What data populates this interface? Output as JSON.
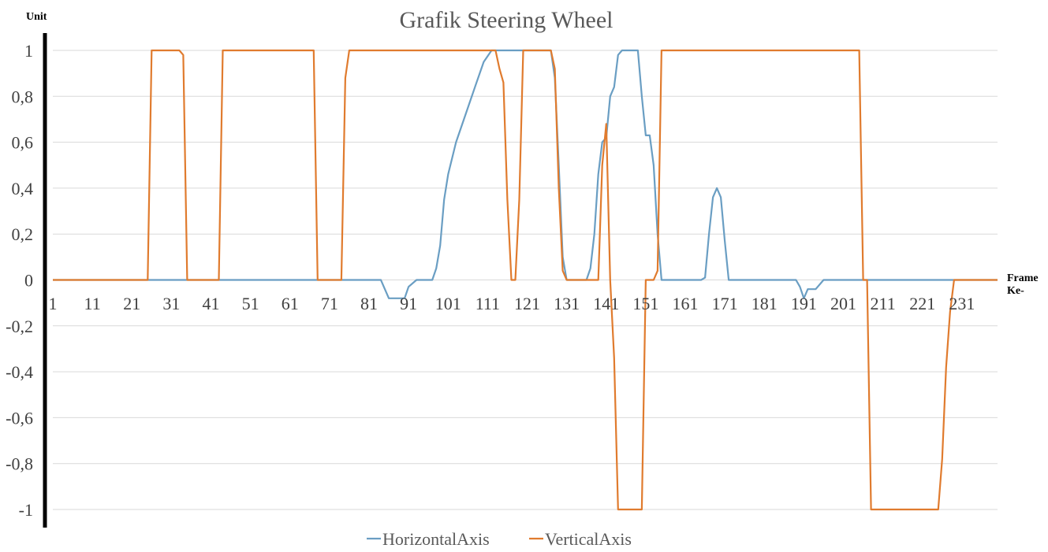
{
  "chart_data": {
    "type": "line",
    "title": "Grafik Steering Wheel",
    "ylabel": "Unit",
    "xlabel_lines": [
      "Frame",
      "Ke-"
    ],
    "ylim": [
      -1,
      1
    ],
    "xlim": [
      1,
      240
    ],
    "y_ticks": [
      1,
      0.8,
      0.6,
      0.4,
      0.2,
      0,
      -0.2,
      -0.4,
      -0.6,
      -0.8,
      -1
    ],
    "y_tick_labels": [
      "1",
      "0,8",
      "0,6",
      "0,4",
      "0,2",
      "0",
      "-0,2",
      "-0,4",
      "-0,6",
      "-0,8",
      "-1"
    ],
    "x_ticks": [
      1,
      11,
      21,
      31,
      41,
      51,
      61,
      71,
      81,
      91,
      101,
      111,
      121,
      131,
      141,
      151,
      161,
      171,
      181,
      191,
      201,
      211,
      221,
      231
    ],
    "x_tick_labels": [
      "1",
      "11",
      "21",
      "31",
      "41",
      "51",
      "61",
      "71",
      "81",
      "91",
      "101",
      "111",
      "121",
      "131",
      "141",
      "151",
      "161",
      "171",
      "181",
      "191",
      "201",
      "211",
      "221",
      "231"
    ],
    "grid": true,
    "legend_position": "bottom",
    "series": [
      {
        "name": "HorizontalAxis",
        "color": "#6a9ec3",
        "points": [
          [
            1,
            0
          ],
          [
            84,
            0
          ],
          [
            86,
            -0.08
          ],
          [
            90,
            -0.08
          ],
          [
            91,
            -0.03
          ],
          [
            93,
            0
          ],
          [
            97,
            0
          ],
          [
            98,
            0.05
          ],
          [
            99,
            0.15
          ],
          [
            100,
            0.35
          ],
          [
            101,
            0.46
          ],
          [
            103,
            0.6
          ],
          [
            105,
            0.7
          ],
          [
            108,
            0.85
          ],
          [
            110,
            0.95
          ],
          [
            112,
            1
          ],
          [
            127,
            1
          ],
          [
            128,
            0.88
          ],
          [
            129,
            0.5
          ],
          [
            130,
            0.1
          ],
          [
            131,
            0
          ],
          [
            136,
            0
          ],
          [
            137,
            0.05
          ],
          [
            138,
            0.2
          ],
          [
            139,
            0.46
          ],
          [
            140,
            0.6
          ],
          [
            141,
            0.62
          ],
          [
            142,
            0.8
          ],
          [
            143,
            0.84
          ],
          [
            144,
            0.98
          ],
          [
            145,
            1
          ],
          [
            149,
            1
          ],
          [
            150,
            0.8
          ],
          [
            151,
            0.63
          ],
          [
            152,
            0.63
          ],
          [
            153,
            0.5
          ],
          [
            154,
            0.2
          ],
          [
            155,
            0
          ],
          [
            165,
            0
          ],
          [
            166,
            0.01
          ],
          [
            167,
            0.2
          ],
          [
            168,
            0.36
          ],
          [
            169,
            0.4
          ],
          [
            170,
            0.36
          ],
          [
            171,
            0.17
          ],
          [
            172,
            0
          ],
          [
            189,
            0
          ],
          [
            190,
            -0.03
          ],
          [
            191,
            -0.08
          ],
          [
            192,
            -0.04
          ],
          [
            194,
            -0.04
          ],
          [
            196,
            0
          ],
          [
            205,
            0
          ],
          [
            240,
            0
          ]
        ]
      },
      {
        "name": "VerticalAxis",
        "color": "#e07b2e",
        "points": [
          [
            1,
            0
          ],
          [
            25,
            0
          ],
          [
            26,
            1
          ],
          [
            33,
            1
          ],
          [
            34,
            0.98
          ],
          [
            35,
            0
          ],
          [
            43,
            0
          ],
          [
            44,
            1
          ],
          [
            67,
            1
          ],
          [
            68,
            0
          ],
          [
            74,
            0
          ],
          [
            75,
            0.88
          ],
          [
            76,
            1
          ],
          [
            111,
            1
          ],
          [
            113,
            1
          ],
          [
            114,
            0.92
          ],
          [
            115,
            0.86
          ],
          [
            116,
            0.35
          ],
          [
            117,
            0
          ],
          [
            118,
            0
          ],
          [
            119,
            0.35
          ],
          [
            120,
            1
          ],
          [
            127,
            1
          ],
          [
            128,
            0.92
          ],
          [
            129,
            0.4
          ],
          [
            130,
            0.04
          ],
          [
            131,
            0
          ],
          [
            139,
            0
          ],
          [
            140,
            0.5
          ],
          [
            141,
            0.68
          ],
          [
            142,
            0
          ],
          [
            143,
            -0.34
          ],
          [
            144,
            -1
          ],
          [
            150,
            -1
          ],
          [
            151,
            0
          ],
          [
            153,
            0
          ],
          [
            154,
            0.04
          ],
          [
            155,
            1
          ],
          [
            205,
            1
          ],
          [
            206,
            0
          ],
          [
            207,
            0
          ],
          [
            208,
            -1
          ],
          [
            225,
            -1
          ],
          [
            226,
            -0.78
          ],
          [
            227,
            -0.38
          ],
          [
            228,
            -0.14
          ],
          [
            229,
            0
          ],
          [
            240,
            0
          ]
        ]
      }
    ]
  }
}
